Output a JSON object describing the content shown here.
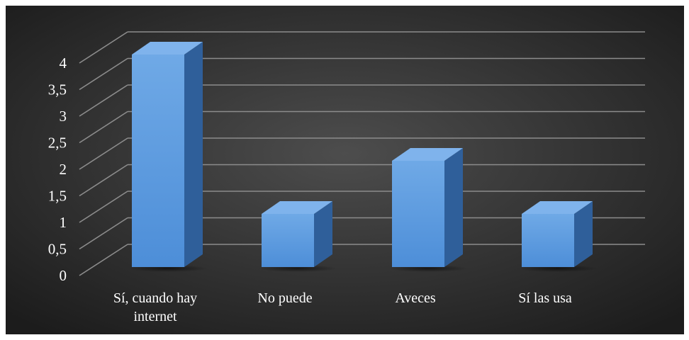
{
  "chart_data": {
    "type": "bar",
    "title": "",
    "xlabel": "",
    "ylabel": "",
    "categories": [
      "Sí, cuando hay internet",
      "No puede",
      "Aveces",
      "Sí las usa"
    ],
    "category_lines": [
      [
        "Sí, cuando hay",
        "internet"
      ],
      [
        "No puede"
      ],
      [
        "Aveces"
      ],
      [
        "Sí las usa"
      ]
    ],
    "values": [
      4,
      1,
      2,
      1
    ],
    "ylim": [
      0,
      4.5
    ],
    "yticks": [
      0,
      0.5,
      1,
      1.5,
      2,
      2.5,
      3,
      3.5,
      4
    ],
    "ytick_labels": [
      "0",
      "0,5",
      "1",
      "1,5",
      "2",
      "2,5",
      "3",
      "3,5",
      "4"
    ],
    "grid": true,
    "style": "3d-column",
    "colors": {
      "background_light": "#4d4d4d",
      "background_dark": "#1c1c1c",
      "bar_front_top": "#6fa9e6",
      "bar_front_bottom": "#4d8ed8",
      "bar_top": "#7fb3ec",
      "bar_side": "#2f5f9a",
      "grid": "#8c8c8c",
      "text": "#ffffff"
    }
  }
}
